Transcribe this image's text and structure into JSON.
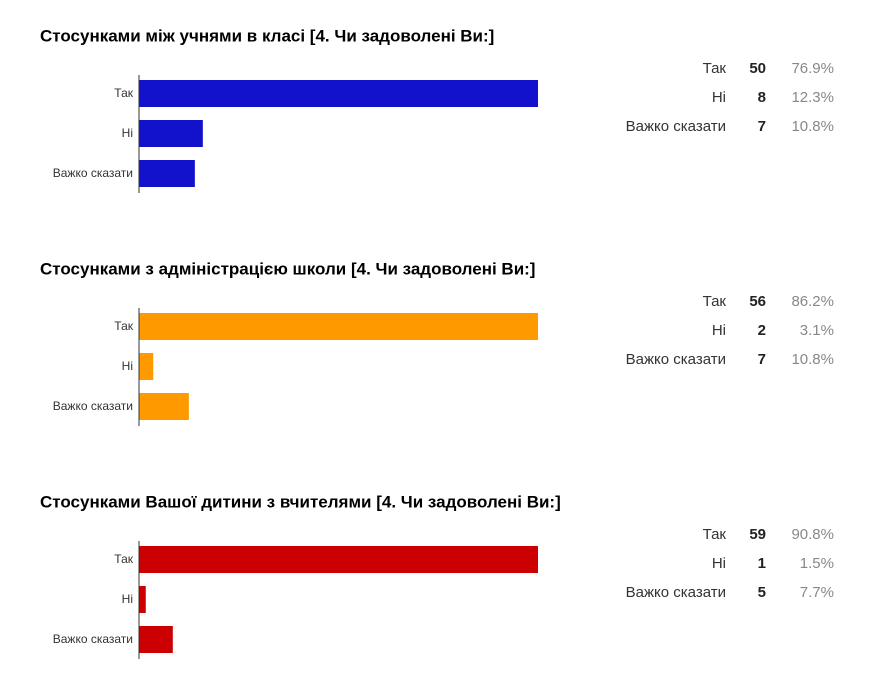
{
  "chart_data": [
    {
      "type": "bar",
      "orientation": "horizontal",
      "title": "Стосунками між учнями в класі [4. Чи задоволені Ви:]",
      "categories": [
        "Так",
        "Ні",
        "Важко сказати"
      ],
      "values": [
        50,
        8,
        7
      ],
      "percent_labels": [
        "76.9%",
        "12.3%",
        "10.8%"
      ],
      "color": "#1212cc"
    },
    {
      "type": "bar",
      "orientation": "horizontal",
      "title": "Стосунками з адміністрацією школи [4. Чи задоволені Ви:]",
      "categories": [
        "Так",
        "Ні",
        "Важко сказати"
      ],
      "values": [
        56,
        2,
        7
      ],
      "percent_labels": [
        "86.2%",
        "3.1%",
        "10.8%"
      ],
      "color": "#ff9900"
    },
    {
      "type": "bar",
      "orientation": "horizontal",
      "title": "Стосунками Вашої дитини з вчителями [4. Чи задоволені Ви:]",
      "categories": [
        "Так",
        "Ні",
        "Важко сказати"
      ],
      "values": [
        59,
        1,
        5
      ],
      "percent_labels": [
        "90.8%",
        "1.5%",
        "7.7%"
      ],
      "color": "#cc0000"
    }
  ]
}
